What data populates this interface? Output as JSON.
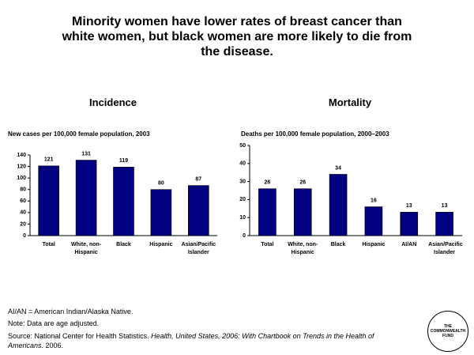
{
  "title": "Minority women have lower rates of breast cancer than white women, but black women are more likely to die from the disease.",
  "chart_data": [
    {
      "type": "bar",
      "title": "Incidence",
      "subtitle": "New cases per 100,000 female population, 2003",
      "categories": [
        "Total",
        "White, non-Hispanic",
        "Black",
        "Hispanic",
        "Asian/Pacific Islander"
      ],
      "values": [
        121,
        131,
        119,
        80,
        87
      ],
      "color": "#000080",
      "ylim": [
        0,
        140
      ],
      "yticks": [
        0,
        20,
        40,
        60,
        80,
        100,
        120,
        140
      ],
      "grid": false
    },
    {
      "type": "bar",
      "title": "Mortality",
      "subtitle": "Deaths per 100,000 female population, 2000–2003",
      "categories": [
        "Total",
        "White, non-Hispanic",
        "Black",
        "Hispanic",
        "AI/AN",
        "Asian/Pacific Islander"
      ],
      "values": [
        26,
        26,
        34,
        16,
        13,
        13
      ],
      "color": "#000080",
      "ylim": [
        0,
        50
      ],
      "yticks": [
        0,
        10,
        20,
        30,
        40,
        50
      ],
      "grid": false
    }
  ],
  "notes": [
    "AI/AN = American Indian/Alaska Native.",
    "Note: Data are age adjusted."
  ],
  "source": {
    "prefix": "Source: National Center for Health Statistics. ",
    "italic": "Health, United States, 2006: With Chartbook on Trends in the Health of Americans.",
    "suffix": " 2006."
  },
  "logo": [
    "THE",
    "COMMONWEALTH",
    "FUND"
  ]
}
